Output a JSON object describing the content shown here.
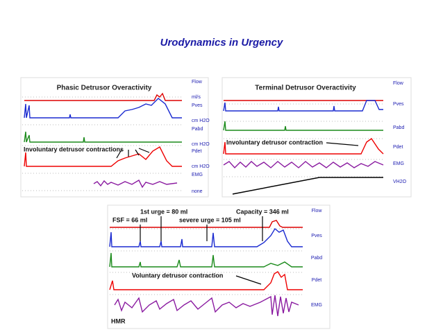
{
  "title": "Urodynamics in Urgency",
  "panels": [
    {
      "title": "Phasic Detrusor Overactivity",
      "annotation": "Involuntary detrusor contractions",
      "channels": [
        {
          "name": "Flow",
          "unit": "ml/s"
        },
        {
          "name": "Pves",
          "unit": "cm H2O"
        },
        {
          "name": "Pabd",
          "unit": "cm H2O"
        },
        {
          "name": "Pdet",
          "unit": "cm H2O"
        },
        {
          "name": "EMG",
          "unit": "none"
        }
      ]
    },
    {
      "title": "Terminal Detrusor Overactivity",
      "annotation": "Involuntary detrusor contraction",
      "channels": [
        {
          "name": "Flow"
        },
        {
          "name": "Pves"
        },
        {
          "name": "Pabd"
        },
        {
          "name": "Pdet"
        },
        {
          "name": "EMG"
        },
        {
          "name": "VH2O"
        }
      ]
    },
    {
      "annotations": [
        "1st urge = 80 ml",
        "Capacity = 346 ml",
        "FSF = 66 ml",
        "severe urge = 105 ml",
        "Voluntary detrusor contraction",
        "HMR"
      ],
      "channels": [
        "Flow",
        "Pves",
        "Pabd",
        "Pdet",
        "EMG"
      ]
    }
  ]
}
